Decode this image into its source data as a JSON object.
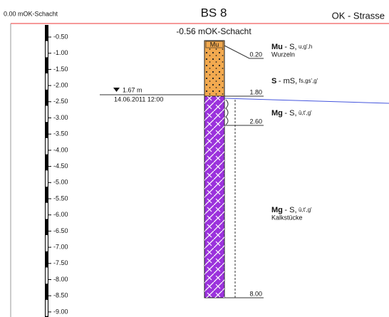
{
  "header": {
    "reference": "0.00 mOK-Schacht",
    "title": "BS 8",
    "right_label": "OK - Strasse",
    "top_level": "-0.56 mOK-Schacht"
  },
  "scale": {
    "labels": [
      "-0.50",
      "-1.00",
      "-1.50",
      "-2.00",
      "-2.50",
      "-3.00",
      "-3.50",
      "-4.00",
      "-4.50",
      "-5.00",
      "-5.50",
      "-6.00",
      "-6.50",
      "-7.00",
      "-7.50",
      "-8.00",
      "-8.50",
      "-9.00"
    ]
  },
  "water": {
    "depth": "1.67 m",
    "date": "14.06.2011 12:00"
  },
  "column": {
    "top_tag": "Mu",
    "depths": [
      "0.20",
      "1.80",
      "2.60",
      "8.00"
    ]
  },
  "layers": [
    {
      "name": "Mu",
      "main": "- S,",
      "detail": "u,g',h",
      "note": "Wurzeln"
    },
    {
      "name": "S",
      "main": "- mS,",
      "detail": "fs,gs',g'"
    },
    {
      "name": "Mg",
      "main": "- S,",
      "detail": "ū,t',g'"
    },
    {
      "name": "Mg",
      "main": "- S,",
      "detail": "ū,t',g'",
      "note": "Kalkstücke"
    }
  ]
}
